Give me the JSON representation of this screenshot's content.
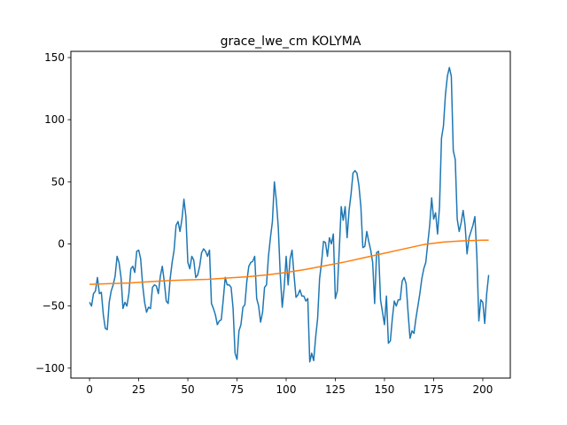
{
  "chart_data": {
    "type": "line",
    "title": "grace_lwe_cm KOLYMA",
    "xlabel": "",
    "ylabel": "",
    "xlim": [
      -9.5,
      214
    ],
    "ylim": [
      -108,
      155
    ],
    "xticks": [
      0,
      25,
      50,
      75,
      100,
      125,
      150,
      175,
      200
    ],
    "yticks": [
      -100,
      -50,
      0,
      50,
      100,
      150
    ],
    "grid": false,
    "legend": "none",
    "series": [
      {
        "color": "#1f77b4",
        "x": [
          0,
          1,
          2,
          3,
          4,
          5,
          6,
          7,
          8,
          9,
          10,
          11,
          12,
          13,
          14,
          15,
          16,
          17,
          18,
          19,
          20,
          21,
          22,
          23,
          24,
          25,
          26,
          27,
          28,
          29,
          30,
          31,
          32,
          33,
          34,
          35,
          36,
          37,
          38,
          39,
          40,
          41,
          42,
          43,
          44,
          45,
          46,
          47,
          48,
          49,
          50,
          51,
          52,
          53,
          54,
          55,
          56,
          57,
          58,
          59,
          60,
          61,
          62,
          63,
          64,
          65,
          66,
          67,
          68,
          69,
          70,
          71,
          72,
          73,
          74,
          75,
          76,
          77,
          78,
          79,
          80,
          81,
          82,
          83,
          84,
          85,
          86,
          87,
          88,
          89,
          90,
          91,
          92,
          93,
          94,
          95,
          96,
          97,
          98,
          99,
          100,
          101,
          102,
          103,
          104,
          105,
          106,
          107,
          108,
          109,
          110,
          111,
          112,
          113,
          114,
          115,
          116,
          117,
          118,
          119,
          120,
          121,
          122,
          123,
          124,
          125,
          126,
          127,
          128,
          129,
          130,
          131,
          132,
          133,
          134,
          135,
          136,
          137,
          138,
          139,
          140,
          141,
          142,
          143,
          144,
          145,
          146,
          147,
          148,
          149,
          150,
          151,
          152,
          153,
          154,
          155,
          156,
          157,
          158,
          159,
          160,
          161,
          162,
          163,
          164,
          165,
          166,
          167,
          168,
          169,
          170,
          171,
          172,
          173,
          174,
          175,
          176,
          177,
          178,
          179,
          180,
          181,
          182,
          183,
          184,
          185,
          186,
          187,
          188,
          189,
          190,
          191,
          192,
          193,
          194,
          195,
          196,
          197,
          198,
          199,
          200,
          201,
          202,
          203
        ],
        "values": [
          -47,
          -50,
          -40,
          -38,
          -27,
          -40,
          -39,
          -57,
          -68,
          -69,
          -47,
          -38,
          -33,
          -26,
          -10,
          -15,
          -27,
          -52,
          -47,
          -50,
          -40,
          -20,
          -18,
          -23,
          -6,
          -5,
          -12,
          -33,
          -47,
          -55,
          -51,
          -52,
          -35,
          -33,
          -34,
          -40,
          -26,
          -18,
          -30,
          -46,
          -48,
          -28,
          -15,
          -5,
          15,
          18,
          10,
          20,
          36,
          22,
          -15,
          -20,
          -10,
          -13,
          -27,
          -25,
          -18,
          -7,
          -4,
          -6,
          -10,
          -5,
          -48,
          -52,
          -57,
          -65,
          -62,
          -61,
          -45,
          -27,
          -33,
          -33,
          -35,
          -52,
          -88,
          -93,
          -70,
          -65,
          -51,
          -49,
          -30,
          -18,
          -15,
          -14,
          -10,
          -44,
          -50,
          -63,
          -55,
          -35,
          -33,
          -10,
          5,
          18,
          50,
          35,
          13,
          -25,
          -51,
          -35,
          -10,
          -33,
          -12,
          -5,
          -25,
          -43,
          -41,
          -37,
          -42,
          -42,
          -46,
          -44,
          -95,
          -88,
          -94,
          -75,
          -60,
          -28,
          -15,
          2,
          1,
          -10,
          5,
          0,
          8,
          -44,
          -38,
          -5,
          30,
          19,
          30,
          5,
          27,
          40,
          57,
          59,
          57,
          47,
          30,
          -3,
          -2,
          10,
          2,
          -5,
          -15,
          -48,
          -7,
          -6,
          -45,
          -55,
          -65,
          -42,
          -80,
          -78,
          -60,
          -46,
          -50,
          -45,
          -45,
          -30,
          -27,
          -32,
          -55,
          -76,
          -70,
          -72,
          -60,
          -50,
          -40,
          -28,
          -20,
          -15,
          0,
          15,
          37,
          20,
          25,
          8,
          30,
          85,
          95,
          120,
          135,
          142,
          135,
          75,
          68,
          20,
          10,
          17,
          27,
          15,
          -8,
          5,
          10,
          15,
          22,
          -10,
          -62,
          -45,
          -47,
          -64,
          -40,
          -25
        ]
      },
      {
        "color": "#ff7f0e",
        "x": [
          0,
          10,
          20,
          30,
          40,
          50,
          60,
          70,
          80,
          90,
          100,
          110,
          120,
          130,
          140,
          150,
          160,
          170,
          180,
          190,
          200,
          203
        ],
        "values": [
          -32.5,
          -32,
          -31.5,
          -30.5,
          -29.5,
          -29,
          -28.5,
          -27.5,
          -26.5,
          -25,
          -23,
          -20.5,
          -17.5,
          -14.5,
          -11,
          -7.5,
          -4,
          -0.5,
          1.5,
          2.5,
          3,
          3
        ]
      }
    ]
  }
}
